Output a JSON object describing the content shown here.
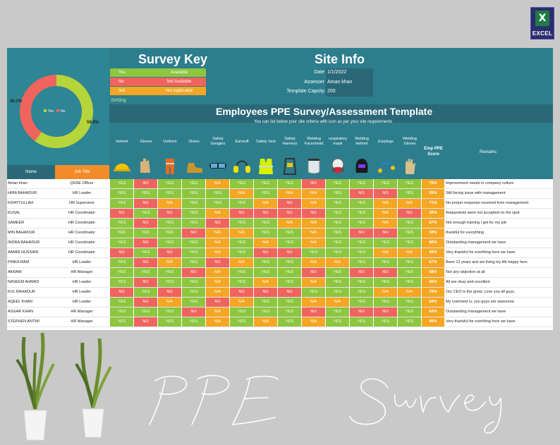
{
  "badge": {
    "letter": "X",
    "label": "EXCEL"
  },
  "survey_key": {
    "title": "Survey Key",
    "items": [
      {
        "key": "Yes",
        "value": "Available",
        "color": "#8dc63f"
      },
      {
        "key": "No",
        "value": "Not Available",
        "color": "#f0645e"
      },
      {
        "key": "N/A",
        "value": "Not Applicable",
        "color": "#f5a623"
      }
    ],
    "setting_label": "Setting"
  },
  "site_info": {
    "title": "Site Info",
    "date_label": "Date",
    "date": "1/1/2022",
    "assessor_label": "Assesser",
    "assessor": "Aman khan",
    "capacity_label": "Template Capcity",
    "capacity": "200"
  },
  "pie": {
    "yes_pct": "59.9%",
    "no_pct": "40.1%",
    "yes_value": 59.9,
    "no_value": 40.1,
    "legend_yes": "Yes",
    "legend_no": "No"
  },
  "template": {
    "title": "Employees PPE Survey/Assessment Template",
    "subtitle": "You can list below your site criteria with icon as per your site requirements",
    "columns": [
      "Helmet",
      "Gloves",
      "Uniform",
      "Shoes",
      "Safety Googles",
      "Earmuff",
      "Safety Vest",
      "Safety Harness",
      "Welding Faceshield",
      "respiratory mask",
      "Welding Helmet",
      "Earplugs",
      "Welding Gloves"
    ],
    "score_header": "Emp PPE Score",
    "remarks_header": "Remarks",
    "name_header": "Name",
    "job_header": "Job Title"
  },
  "rows": [
    {
      "name": "Aman khan",
      "job": "QHSE Officer",
      "vals": [
        "Y",
        "N",
        "Y",
        "Y",
        "A",
        "Y",
        "Y",
        "Y",
        "N",
        "Y",
        "Y",
        "Y",
        "Y"
      ],
      "score": "75%",
      "remark": "Improvement needs in company culture"
    },
    {
      "name": "HIRA BAHADUR",
      "job": "HR Leader",
      "vals": [
        "Y",
        "Y",
        "Y",
        "Y",
        "Y",
        "A",
        "Y",
        "A",
        "A",
        "Y",
        "N",
        "N",
        "Y"
      ],
      "score": "55%",
      "remark": "Still facing issue with management"
    },
    {
      "name": "KIFAYTULLAH",
      "job": "HR Supervisor",
      "vals": [
        "Y",
        "N",
        "A",
        "Y",
        "Y",
        "Y",
        "A",
        "N",
        "A",
        "Y",
        "Y",
        "A",
        "A"
      ],
      "score": "71%",
      "remark": "No proper response received from management"
    },
    {
      "name": "KUSAL",
      "job": "HR Coordinator",
      "vals": [
        "N",
        "Y",
        "N",
        "Y",
        "A",
        "N",
        "N",
        "N",
        "N",
        "Y",
        "Y",
        "A",
        "N"
      ],
      "score": "30%",
      "remark": "Requesteds were not accepted on the spot"
    },
    {
      "name": "SAMEER",
      "job": "HR Coordinator",
      "vals": [
        "Y",
        "N",
        "Y",
        "Y",
        "N",
        "Y",
        "Y",
        "A",
        "A",
        "Y",
        "Y",
        "A",
        "Y"
      ],
      "score": "67%",
      "remark": "Not enough training I got for my job"
    },
    {
      "name": "MIN BAHADUR",
      "job": "HR Coordinator",
      "vals": [
        "Y",
        "Y",
        "Y",
        "N",
        "A",
        "A",
        "Y",
        "Y",
        "A",
        "Y",
        "N",
        "N",
        "Y"
      ],
      "score": "58%",
      "remark": "thankful for everything"
    },
    {
      "name": "INDRA BAHADUR",
      "job": "HR Coordinator",
      "vals": [
        "Y",
        "N",
        "Y",
        "Y",
        "A",
        "Y",
        "A",
        "Y",
        "A",
        "Y",
        "Y",
        "Y",
        "Y"
      ],
      "score": "86%",
      "remark": "Outstanding management we have"
    },
    {
      "name": "AAMIR HUSSAIN",
      "job": "HR Coordinator",
      "vals": [
        "N",
        "Y",
        "N",
        "Y",
        "A",
        "Y",
        "N",
        "N",
        "Y",
        "Y",
        "Y",
        "A",
        "A"
      ],
      "score": "40%",
      "remark": "Very thankful for everthing here we have"
    },
    {
      "name": "PINKA RAM",
      "job": "HR Leader",
      "vals": [
        "Y",
        "N",
        "A",
        "Y",
        "N",
        "A",
        "Y",
        "Y",
        "A",
        "A",
        "Y",
        "Y",
        "Y"
      ],
      "score": "67%",
      "remark": "Been 12 years and am living my life happy here"
    },
    {
      "name": "AKRAM",
      "job": "HR Manager",
      "vals": [
        "Y",
        "Y",
        "Y",
        "N",
        "A",
        "Y",
        "Y",
        "Y",
        "N",
        "Y",
        "N",
        "N",
        "Y"
      ],
      "score": "58%",
      "remark": "Not any objection at all"
    },
    {
      "name": "NASEEM AHMAD",
      "job": "HR Leader",
      "vals": [
        "Y",
        "N",
        "Y",
        "Y",
        "A",
        "Y",
        "A",
        "Y",
        "A",
        "Y",
        "Y",
        "Y",
        "Y"
      ],
      "score": "86%",
      "remark": "All are okay and excellent"
    },
    {
      "name": "KUL BAHADUR",
      "job": "HR Leader",
      "vals": [
        "N",
        "Y",
        "N",
        "Y",
        "A",
        "N",
        "N",
        "N",
        "Y",
        "Y",
        "Y",
        "A",
        "A"
      ],
      "score": "33%",
      "remark": "Our CEO is the great. Love you all guys."
    },
    {
      "name": "AQEEL KHAN",
      "job": "HR Leader",
      "vals": [
        "Y",
        "N",
        "A",
        "Y",
        "N",
        "A",
        "Y",
        "Y",
        "A",
        "A",
        "Y",
        "Y",
        "Y"
      ],
      "score": "64%",
      "remark": "My comment is, you guys are awesome."
    },
    {
      "name": "ASGAR KHAN",
      "job": "HR Manager",
      "vals": [
        "Y",
        "Y",
        "Y",
        "N",
        "A",
        "Y",
        "Y",
        "Y",
        "N",
        "Y",
        "N",
        "N",
        "Y"
      ],
      "score": "64%",
      "remark": "Outstanding management we have"
    },
    {
      "name": "STEPHEN ANTWI",
      "job": "HR Manager",
      "vals": [
        "Y",
        "N",
        "Y",
        "Y",
        "A",
        "Y",
        "A",
        "Y",
        "A",
        "Y",
        "Y",
        "Y",
        "Y"
      ],
      "score": "95%",
      "remark": "Very thankful for everthing here we have"
    }
  ],
  "value_labels": {
    "Y": "YES",
    "N": "NO",
    "A": "N/A"
  },
  "value_colors": {
    "Y": "#8dc63f",
    "N": "#f0645e",
    "A": "#f5a623"
  }
}
